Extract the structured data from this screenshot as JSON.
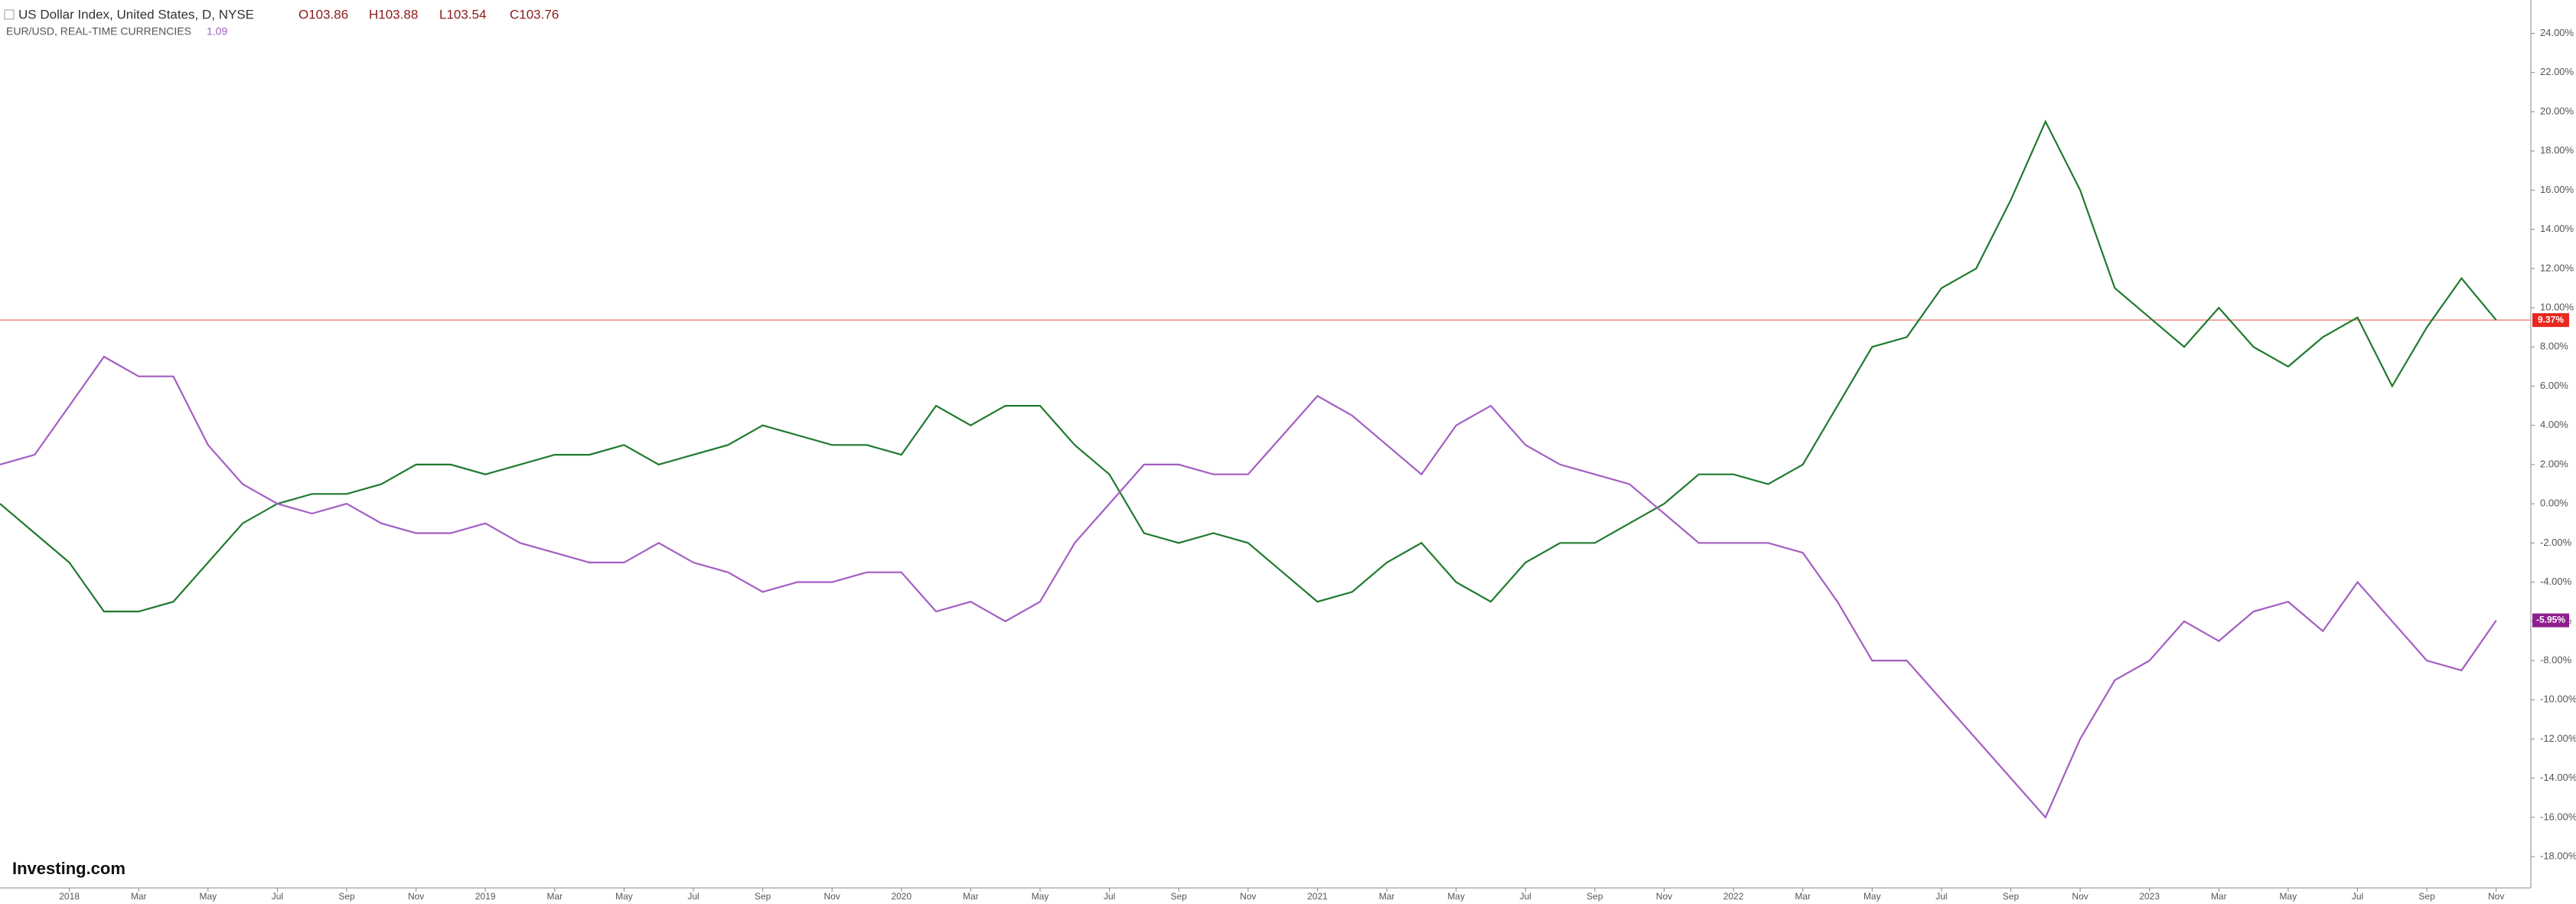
{
  "chart_data": {
    "type": "line",
    "header": {
      "ohlc": [
        "O103.86",
        "H103.88",
        "L103.54",
        "C103.76"
      ],
      "compare_value": "1.09"
    },
    "logo": "Investing.com",
    "x": [
      "2017-11",
      "2017-12",
      "2018-01",
      "2018-02",
      "2018-03",
      "2018-04",
      "2018-05",
      "2018-06",
      "2018-07",
      "2018-08",
      "2018-09",
      "2018-10",
      "2018-11",
      "2018-12",
      "2019-01",
      "2019-02",
      "2019-03",
      "2019-04",
      "2019-05",
      "2019-06",
      "2019-07",
      "2019-08",
      "2019-09",
      "2019-10",
      "2019-11",
      "2019-12",
      "2020-01",
      "2020-02",
      "2020-03",
      "2020-04",
      "2020-05",
      "2020-06",
      "2020-07",
      "2020-08",
      "2020-09",
      "2020-10",
      "2020-11",
      "2020-12",
      "2021-01",
      "2021-02",
      "2021-03",
      "2021-04",
      "2021-05",
      "2021-06",
      "2021-07",
      "2021-08",
      "2021-09",
      "2021-10",
      "2021-11",
      "2021-12",
      "2022-01",
      "2022-02",
      "2022-03",
      "2022-04",
      "2022-05",
      "2022-06",
      "2022-07",
      "2022-08",
      "2022-09",
      "2022-10",
      "2022-11",
      "2022-12",
      "2023-01",
      "2023-02",
      "2023-03",
      "2023-04",
      "2023-05",
      "2023-06",
      "2023-07",
      "2023-08",
      "2023-09",
      "2023-10",
      "2023-11"
    ],
    "series": [
      {
        "name": "US Dollar Index, United States, D, NYSE",
        "color": "#1f7a2e",
        "last_value_label": "9.37%",
        "label_color": "#e8271e",
        "values": [
          0,
          -1.5,
          -3,
          -5.5,
          -5.5,
          -5,
          -3,
          -1,
          0,
          0.5,
          0.5,
          1,
          2,
          2,
          1.5,
          2,
          2.5,
          2.5,
          3,
          2,
          2.5,
          3,
          4,
          3.5,
          3,
          3,
          2.5,
          5,
          4,
          5,
          5,
          3,
          1.5,
          -1.5,
          -2,
          -1.5,
          -2,
          -3.5,
          -5,
          -4.5,
          -3,
          -2,
          -4,
          -5,
          -3,
          -2,
          -2,
          -1,
          0,
          1.5,
          1.5,
          1,
          2,
          5,
          8,
          8.5,
          11,
          12,
          15.5,
          19.5,
          16,
          11,
          9.5,
          8,
          10,
          8,
          7,
          8.5,
          9.5,
          6,
          9,
          11.5,
          9.37
        ]
      },
      {
        "name": "EUR/USD, REAL-TIME CURRENCIES",
        "color": "#a35ec2",
        "last_value_label": "-5.95%",
        "label_color": "#8e1f8e",
        "values": [
          2,
          2.5,
          5,
          7.5,
          6.5,
          6.5,
          3,
          1,
          0,
          -0.5,
          0,
          -1,
          -1.5,
          -1.5,
          -1,
          -2,
          -2.5,
          -3,
          -3,
          -2,
          -3,
          -3.5,
          -4.5,
          -4,
          -4,
          -3.5,
          -3.5,
          -5.5,
          -5,
          -6,
          -5,
          -2,
          0,
          2,
          2,
          1.5,
          1.5,
          3.5,
          5.5,
          4.5,
          3,
          1.5,
          4,
          5,
          3,
          2,
          1.5,
          1,
          -0.5,
          -2,
          -2,
          -2,
          -2.5,
          -5,
          -8,
          -8,
          -10,
          -12,
          -14,
          -16,
          -12,
          -9,
          -8,
          -6,
          -7,
          -5.5,
          -5,
          -6.5,
          -4,
          -6,
          -8,
          -8.5,
          -5.95
        ]
      }
    ],
    "xlim": [
      "2017-11",
      "2023-12"
    ],
    "xticks": [
      {
        "value": "2018-01",
        "label": "2018"
      },
      {
        "value": "2018-03",
        "label": "Mar"
      },
      {
        "value": "2018-05",
        "label": "May"
      },
      {
        "value": "2018-07",
        "label": "Jul"
      },
      {
        "value": "2018-09",
        "label": "Sep"
      },
      {
        "value": "2018-11",
        "label": "Nov"
      },
      {
        "value": "2019-01",
        "label": "2019"
      },
      {
        "value": "2019-03",
        "label": "Mar"
      },
      {
        "value": "2019-05",
        "label": "May"
      },
      {
        "value": "2019-07",
        "label": "Jul"
      },
      {
        "value": "2019-09",
        "label": "Sep"
      },
      {
        "value": "2019-11",
        "label": "Nov"
      },
      {
        "value": "2020-01",
        "label": "2020"
      },
      {
        "value": "2020-03",
        "label": "Mar"
      },
      {
        "value": "2020-05",
        "label": "May"
      },
      {
        "value": "2020-07",
        "label": "Jul"
      },
      {
        "value": "2020-09",
        "label": "Sep"
      },
      {
        "value": "2020-11",
        "label": "Nov"
      },
      {
        "value": "2021-01",
        "label": "2021"
      },
      {
        "value": "2021-03",
        "label": "Mar"
      },
      {
        "value": "2021-05",
        "label": "May"
      },
      {
        "value": "2021-07",
        "label": "Jul"
      },
      {
        "value": "2021-09",
        "label": "Sep"
      },
      {
        "value": "2021-11",
        "label": "Nov"
      },
      {
        "value": "2022-01",
        "label": "2022"
      },
      {
        "value": "2022-03",
        "label": "Mar"
      },
      {
        "value": "2022-05",
        "label": "May"
      },
      {
        "value": "2022-07",
        "label": "Jul"
      },
      {
        "value": "2022-09",
        "label": "Sep"
      },
      {
        "value": "2022-11",
        "label": "Nov"
      },
      {
        "value": "2023-01",
        "label": "2023"
      },
      {
        "value": "2023-03",
        "label": "Mar"
      },
      {
        "value": "2023-05",
        "label": "May"
      },
      {
        "value": "2023-07",
        "label": "Jul"
      },
      {
        "value": "2023-09",
        "label": "Sep"
      },
      {
        "value": "2023-11",
        "label": "Nov"
      }
    ],
    "ylim": [
      -19.6,
      25.7
    ],
    "yticks": [
      {
        "value": 24,
        "label": "24.00%"
      },
      {
        "value": 22,
        "label": "22.00%"
      },
      {
        "value": 20,
        "label": "20.00%"
      },
      {
        "value": 18,
        "label": "18.00%"
      },
      {
        "value": 16,
        "label": "16.00%"
      },
      {
        "value": 14,
        "label": "14.00%"
      },
      {
        "value": 12,
        "label": "12.00%"
      },
      {
        "value": 10,
        "label": "10.00%"
      },
      {
        "value": 8,
        "label": "8.00%"
      },
      {
        "value": 6,
        "label": "6.00%"
      },
      {
        "value": 4,
        "label": "4.00%"
      },
      {
        "value": 2,
        "label": "2.00%"
      },
      {
        "value": 0,
        "label": "0.00%"
      },
      {
        "value": -2,
        "label": "-2.00%"
      },
      {
        "value": -4,
        "label": "-4.00%"
      },
      {
        "value": -6,
        "label": "-6.00%"
      },
      {
        "value": -8,
        "label": "-8.00%"
      },
      {
        "value": -10,
        "label": "-10.00%"
      },
      {
        "value": -12,
        "label": "-12.00%"
      },
      {
        "value": -14,
        "label": "-14.00%"
      },
      {
        "value": -16,
        "label": "-16.00%"
      },
      {
        "value": -18,
        "label": "-18.00%"
      }
    ],
    "level_line_color": "#f08a86",
    "grid": false
  }
}
